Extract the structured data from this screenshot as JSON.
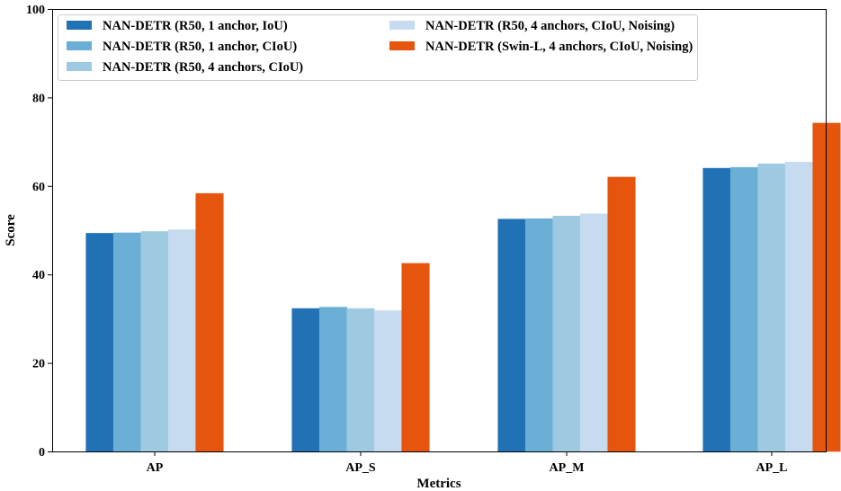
{
  "chart_data": {
    "type": "bar",
    "title": "",
    "xlabel": "Metrics",
    "ylabel": "Score",
    "ylim": [
      0,
      100
    ],
    "yticks": [
      0,
      20,
      40,
      60,
      80,
      100
    ],
    "grid": false,
    "legend_placement": "top-left",
    "categories": [
      "AP",
      "AP_S",
      "AP_M",
      "AP_L"
    ],
    "series": [
      {
        "name": "NAN-DETR (R50, 1 anchor, IoU)",
        "color": "#2171b5",
        "values": [
          49.3,
          32.3,
          52.5,
          64.0
        ]
      },
      {
        "name": "NAN-DETR (R50, 1 anchor, CIoU)",
        "color": "#6baed6",
        "values": [
          49.4,
          32.6,
          52.6,
          64.2
        ]
      },
      {
        "name": "NAN-DETR (R50, 4 anchors, CIoU)",
        "color": "#9ecae1",
        "values": [
          49.7,
          32.3,
          53.2,
          65.0
        ]
      },
      {
        "name": "NAN-DETR (R50, 4 anchors, CIoU, Noising)",
        "color": "#c6dbef",
        "values": [
          50.1,
          31.8,
          53.7,
          65.4
        ]
      },
      {
        "name": "NAN-DETR (Swin-L, 4 anchors, CIoU, Noising)",
        "color": "#e6550d",
        "values": [
          58.3,
          42.5,
          62.0,
          74.2
        ]
      }
    ]
  }
}
